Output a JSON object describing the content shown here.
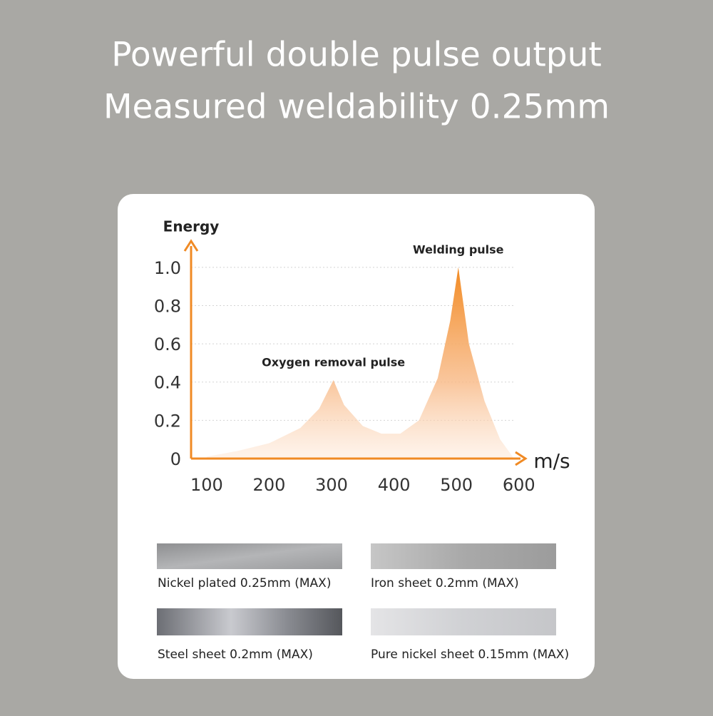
{
  "header": {
    "title_lines": [
      "Powerful double pulse output",
      "Measured weldability 0.25mm"
    ]
  },
  "chart_data": {
    "type": "area",
    "y_label": "Energy",
    "x_label": "m/s",
    "x": [
      100,
      150,
      200,
      250,
      280,
      303,
      320,
      350,
      380,
      410,
      440,
      470,
      490,
      503,
      520,
      545,
      570,
      590
    ],
    "series": [
      {
        "color": "#f08a24",
        "values": [
          0.01,
          0.04,
          0.08,
          0.16,
          0.26,
          0.41,
          0.28,
          0.17,
          0.13,
          0.13,
          0.2,
          0.42,
          0.72,
          1.0,
          0.6,
          0.3,
          0.1,
          0.01
        ]
      }
    ],
    "xlim": [
      75,
      630
    ],
    "ylim": [
      0,
      1.13
    ],
    "xticks": [
      100,
      200,
      300,
      400,
      500,
      600
    ],
    "yticks": [
      0,
      0.2,
      0.4,
      0.6,
      0.8,
      {
        "value": 1,
        "label": "1.0"
      }
    ],
    "grid": true,
    "annotations": [
      {
        "text": "Oxygen removal pulse",
        "x": 303,
        "y": 0.41
      },
      {
        "text": "Welding pulse",
        "x": 503,
        "y": 1.0
      }
    ]
  },
  "materials": [
    "Nickel plated 0.25mm (MAX)",
    "Iron sheet 0.2mm (MAX)",
    "Steel sheet 0.2mm (MAX)",
    "Pure nickel sheet 0.15mm (MAX)"
  ]
}
